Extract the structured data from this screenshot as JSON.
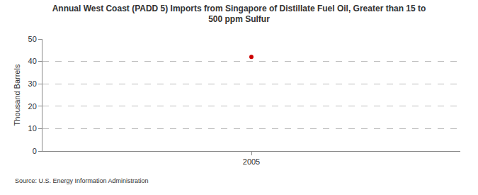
{
  "chart_data": {
    "type": "scatter",
    "title": "Annual West Coast (PADD 5) Imports from Singapore of Distillate Fuel Oil, Greater than 15 to 500 ppm Sulfur",
    "y_label": "Thousand Barrels",
    "source": "Source: U.S. Energy Information Administration",
    "categories": [
      "2005"
    ],
    "values": [
      42
    ],
    "color": "#cc0000",
    "marker": "circle",
    "ylim": [
      0,
      50
    ],
    "yticks": [
      0,
      10,
      20,
      30,
      40,
      50
    ],
    "grid": true
  }
}
